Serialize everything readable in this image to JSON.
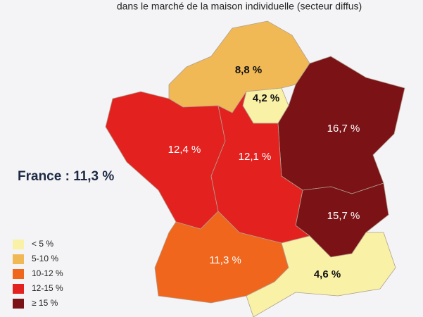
{
  "subtitle": "dans le marché de la maison individuelle (secteur diffus)",
  "france_label": "France : 11,3 %",
  "regions": [
    {
      "value": 8.8,
      "label": "8,8 %",
      "color": "#f1b955"
    },
    {
      "value": 4.2,
      "label": "4,2 %",
      "color": "#f8f1a6"
    },
    {
      "value": 16.7,
      "label": "16,7 %",
      "color": "#7b1216"
    },
    {
      "value": 15.7,
      "label": "15,7 %",
      "color": "#7b1216"
    },
    {
      "value": 12.4,
      "label": "12,4 %",
      "color": "#e3221f"
    },
    {
      "value": 12.1,
      "label": "12,1 %",
      "color": "#e3221f"
    },
    {
      "value": 11.3,
      "label": "11,3 %",
      "color": "#f0661c"
    },
    {
      "value": 4.6,
      "label": "4,6 %",
      "color": "#f8f1a6"
    }
  ],
  "legend": [
    {
      "label": "< 5 %",
      "color": "#f8f1a6"
    },
    {
      "label": "5-10 %",
      "color": "#f1b955"
    },
    {
      "label": "10-12 %",
      "color": "#f0661c"
    },
    {
      "label": "12-15 %",
      "color": "#e3221f"
    },
    {
      "label": "≥ 15 %",
      "color": "#7b1216"
    }
  ]
}
